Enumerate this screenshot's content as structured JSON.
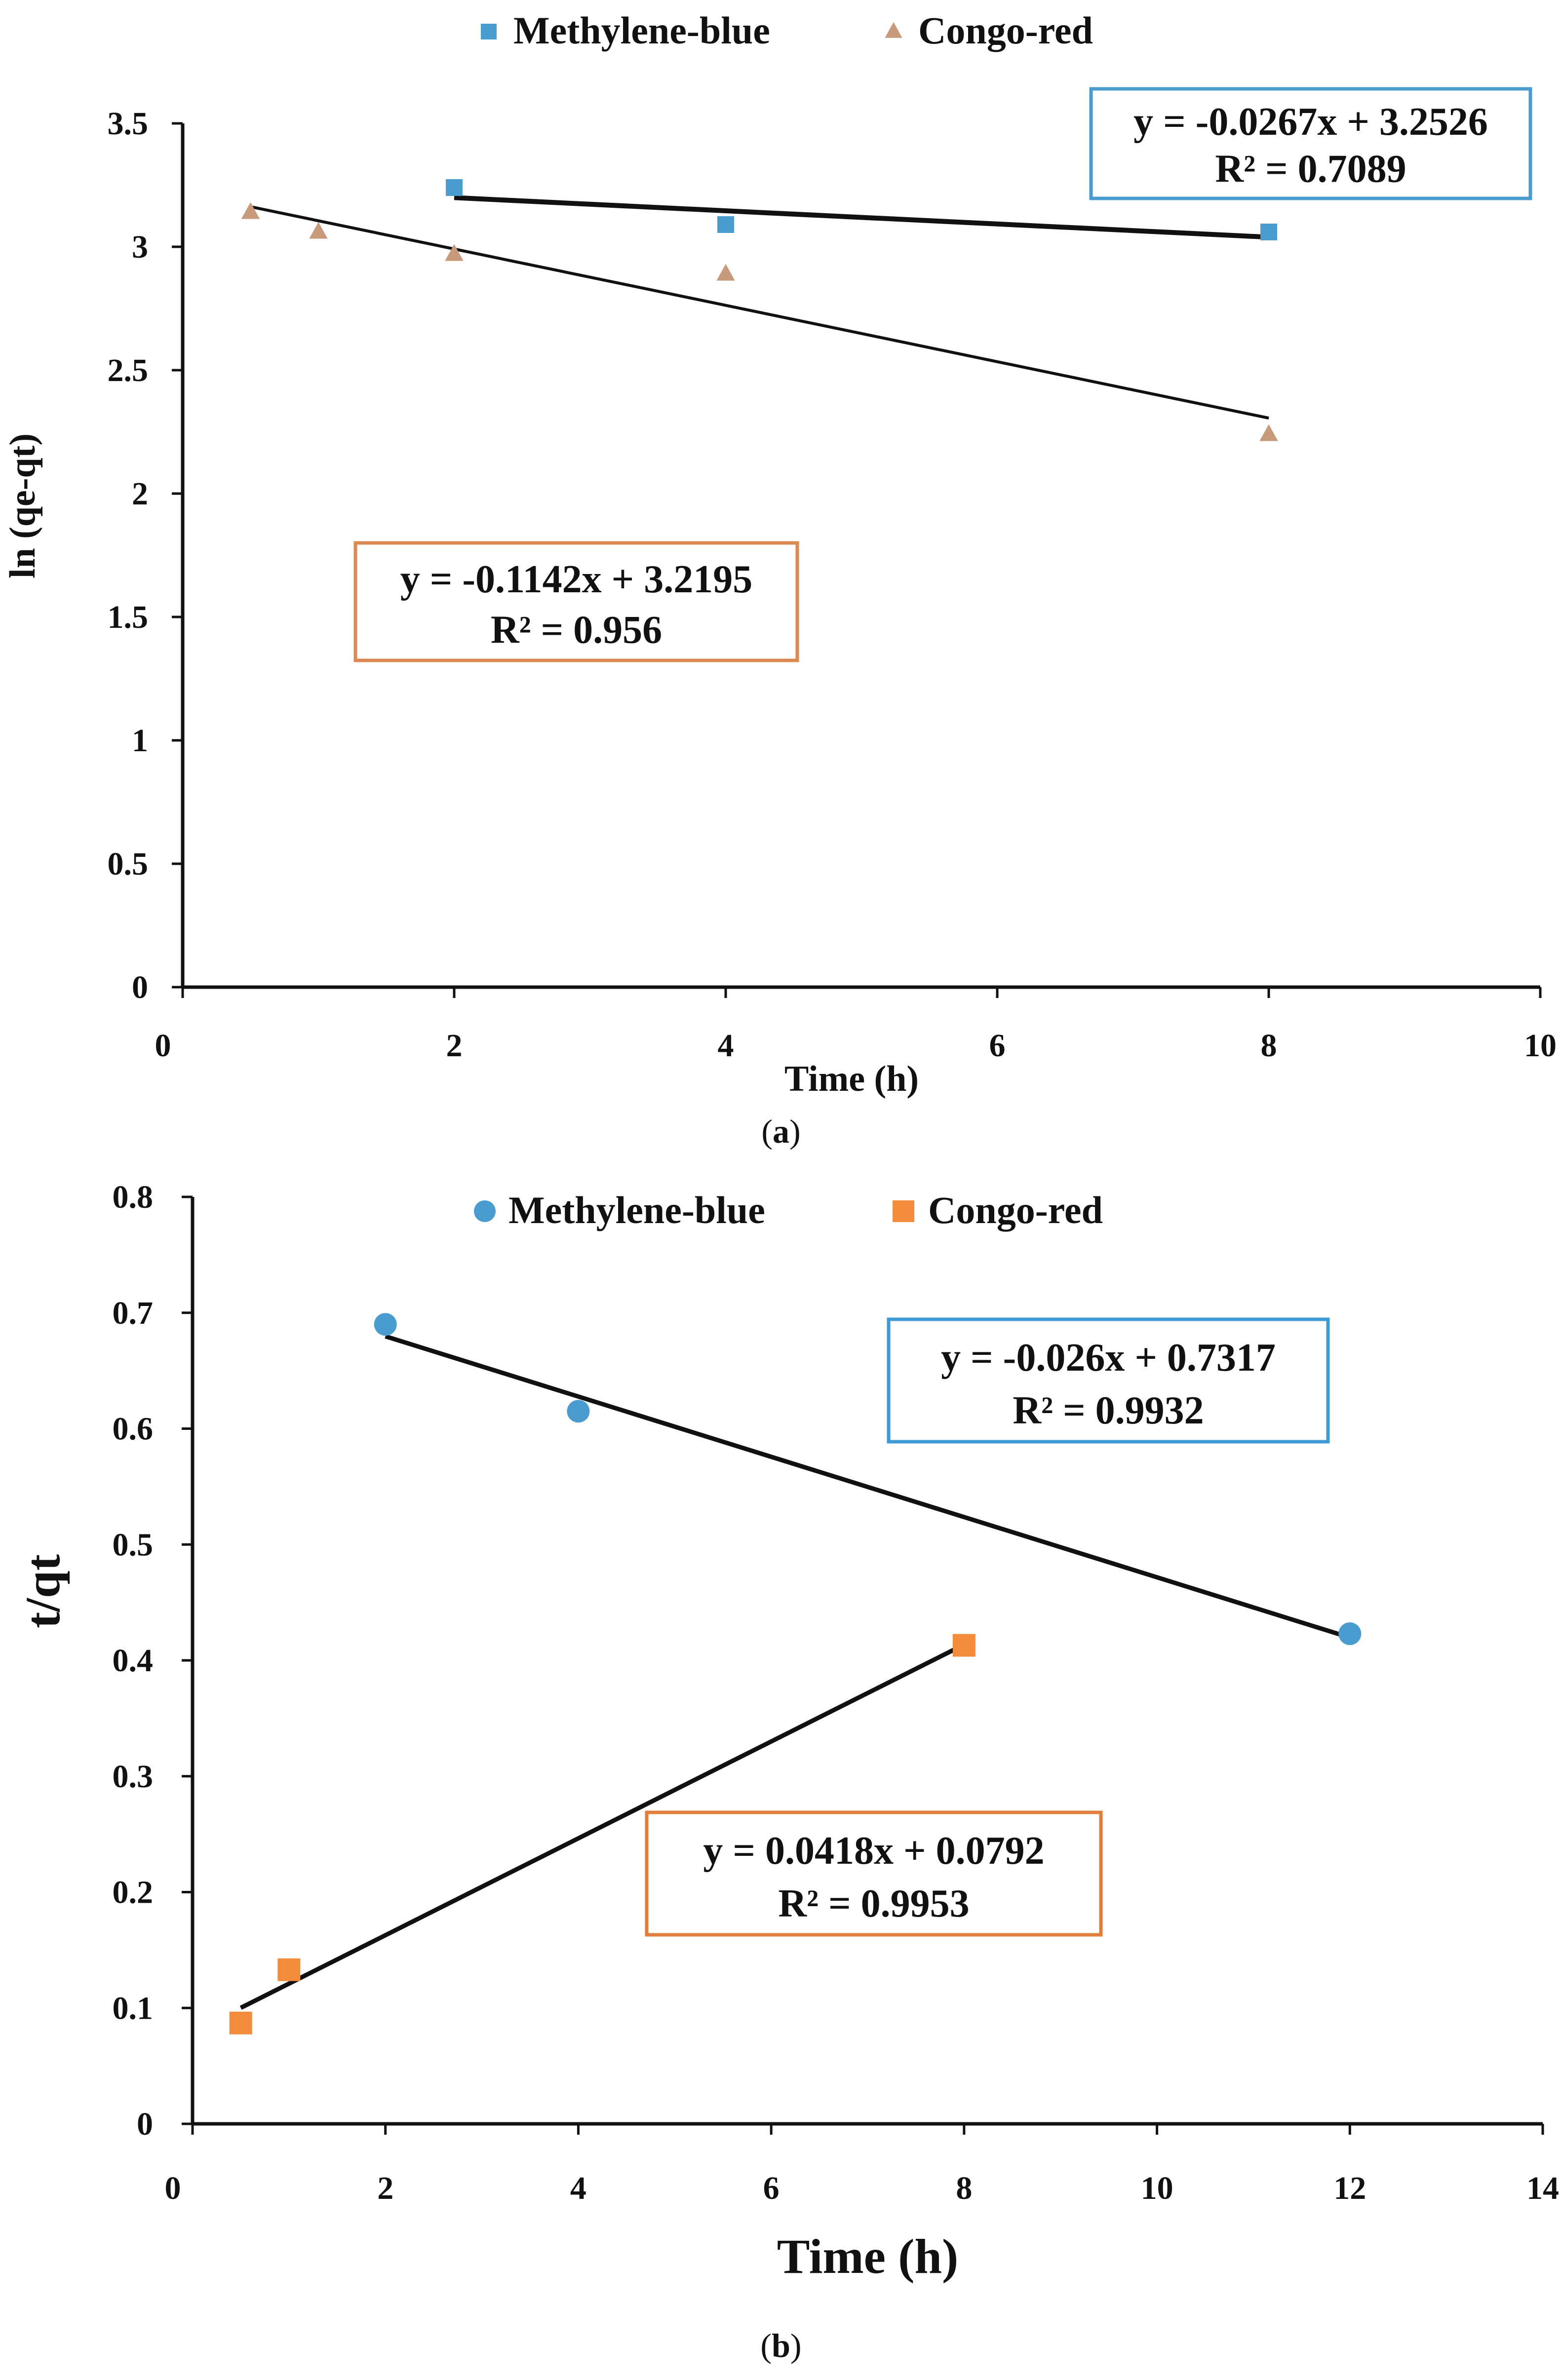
{
  "figure": {
    "panels": [
      {
        "label_open": "(",
        "label_letter": "a",
        "label_close": ")"
      },
      {
        "label_open": "(",
        "label_letter": "b",
        "label_close": ")"
      }
    ]
  },
  "chart_data": [
    {
      "type": "scatter",
      "panel": "(a)",
      "xlabel": "Time (h)",
      "ylabel": "ln (qe-qt)",
      "xlim": [
        0,
        10
      ],
      "ylim": [
        0,
        3.5
      ],
      "xticks": [
        "0",
        "2",
        "4",
        "6",
        "8",
        "10"
      ],
      "yticks": [
        "0",
        "0.5",
        "1",
        "1.5",
        "2",
        "2.5",
        "3",
        "3.5"
      ],
      "legend_position": "top",
      "series": [
        {
          "name": "Methylene-blue",
          "marker": "square",
          "color": "#4a9ccf",
          "x": [
            2,
            4,
            8
          ],
          "y": [
            3.24,
            3.09,
            3.06
          ],
          "trendline": {
            "slope": -0.0267,
            "intercept": 3.2526,
            "x_range": [
              2,
              8
            ]
          },
          "equation": "y = -0.0267x + 3.2526",
          "r2": "R² = 0.7089",
          "box_color": "#4a9ccf"
        },
        {
          "name": "Congo-red",
          "marker": "triangle",
          "color": "#c89a7c",
          "x": [
            0.5,
            1,
            2,
            4,
            8
          ],
          "y": [
            3.14,
            3.06,
            2.97,
            2.89,
            2.24
          ],
          "trendline": {
            "slope": -0.1142,
            "intercept": 3.2195,
            "x_range": [
              0.5,
              8
            ]
          },
          "equation": "y = -0.1142x + 3.2195",
          "r2": "R² = 0.956",
          "box_color": "#dc8a52"
        }
      ]
    },
    {
      "type": "scatter",
      "panel": "(b)",
      "xlabel": "Time (h)",
      "ylabel": "t/qt",
      "xlim": [
        0,
        14
      ],
      "ylim": [
        0,
        0.8
      ],
      "xticks": [
        "0",
        "2",
        "4",
        "6",
        "8",
        "10",
        "12",
        "14"
      ],
      "yticks": [
        "0",
        "0.1",
        "0.2",
        "0.3",
        "0.4",
        "0.5",
        "0.6",
        "0.7",
        "0.8"
      ],
      "legend_position": "top",
      "series": [
        {
          "name": "Methylene-blue",
          "marker": "circle",
          "color": "#4a9ccf",
          "x": [
            2,
            4,
            12
          ],
          "y": [
            0.69,
            0.615,
            0.423
          ],
          "trendline": {
            "slope": -0.026,
            "intercept": 0.7317,
            "x_range": [
              2,
              12
            ]
          },
          "equation": "y = -0.026x + 0.7317",
          "r2": "R² = 0.9932",
          "box_color": "#3f9ad6"
        },
        {
          "name": "Congo-red",
          "marker": "square",
          "color": "#f28c3c",
          "x": [
            0.5,
            1,
            8
          ],
          "y": [
            0.087,
            0.133,
            0.413
          ],
          "trendline": {
            "slope": 0.0418,
            "intercept": 0.0792,
            "x_range": [
              0.5,
              8
            ]
          },
          "equation": "y = 0.0418x + 0.0792",
          "r2": "R² = 0.9953",
          "box_color": "#e07e3a"
        }
      ]
    }
  ]
}
